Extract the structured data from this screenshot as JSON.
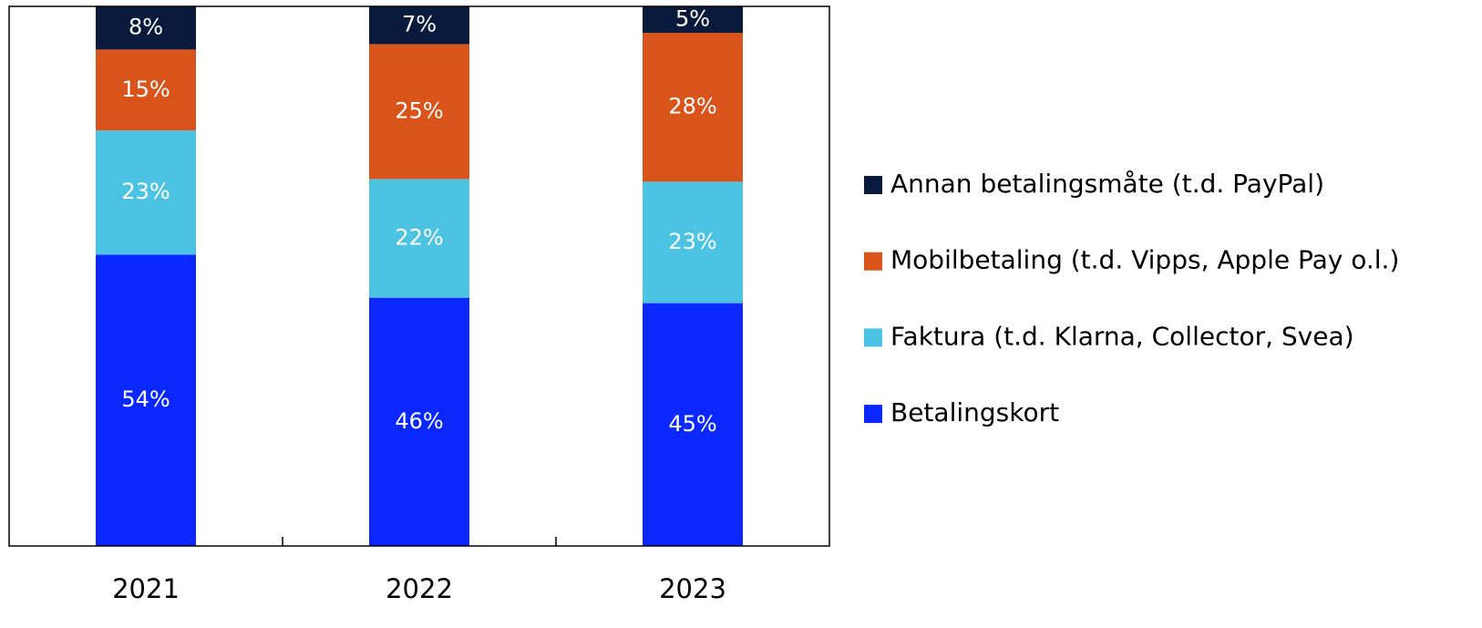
{
  "chart_data": {
    "type": "stacked_bar",
    "categories": [
      "2021",
      "2022",
      "2023"
    ],
    "series": [
      {
        "name": "Betalingskort",
        "color": "#0a28ff",
        "values": [
          54,
          46,
          45
        ],
        "value_labels": [
          "54%",
          "46%",
          "45%"
        ]
      },
      {
        "name": "Faktura (t.d. Klarna, Collector, Svea)",
        "color": "#4dc3e3",
        "values": [
          23,
          22,
          22.5
        ],
        "value_labels": [
          "23%",
          "22%",
          "23%"
        ]
      },
      {
        "name": "Mobilbetaling (t.d. Vipps, Apple Pay o.l.)",
        "color": "#d9541a",
        "values": [
          15,
          25,
          27.6
        ],
        "value_labels": [
          "15%",
          "25%",
          "28%"
        ]
      },
      {
        "name": "Annan betalingsmåte (t.d. PayPal)",
        "color": "#0a1a3c",
        "values": [
          8,
          7,
          4.9
        ],
        "value_labels": [
          "8%",
          "7%",
          "5%"
        ]
      }
    ],
    "ylim": [
      0,
      100
    ],
    "legend": "right"
  }
}
